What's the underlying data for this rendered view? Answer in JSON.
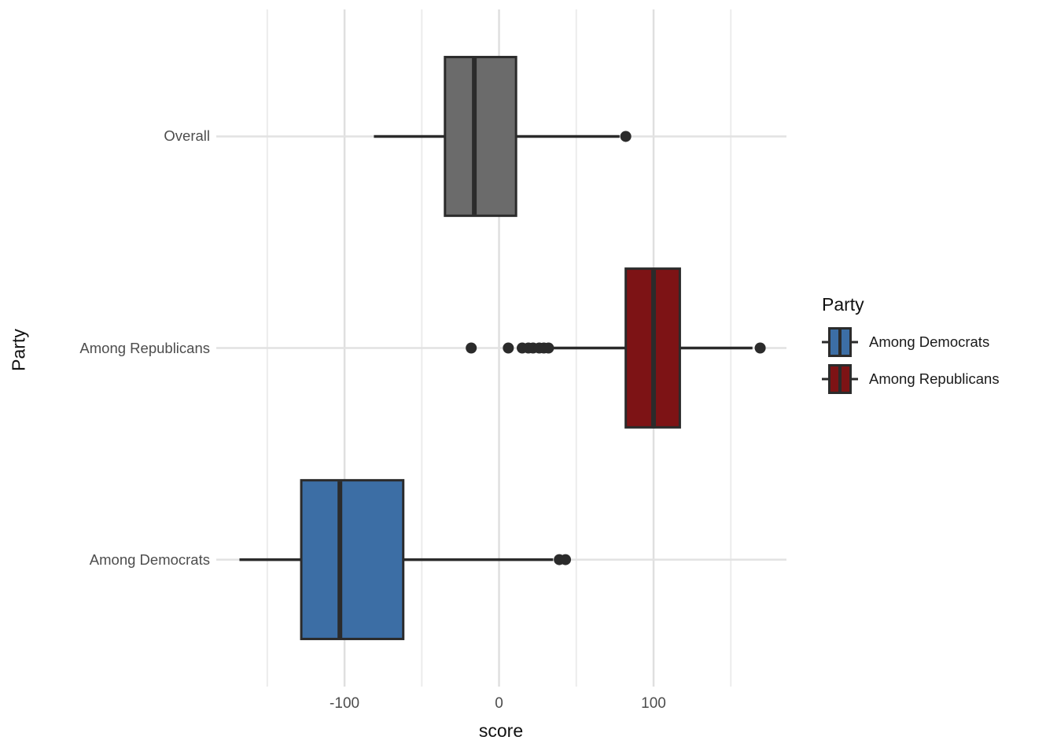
{
  "chart_data": {
    "type": "boxplot",
    "orientation": "horizontal",
    "title": "",
    "xlabel": "score",
    "ylabel": "Party",
    "xlim": [
      -183,
      186
    ],
    "x_major_ticks": [
      -100,
      0,
      100
    ],
    "x_tick_labels": [
      "-100",
      "0",
      "100"
    ],
    "x_minor_gridlines": [
      -150,
      -50,
      50,
      150
    ],
    "categories_top_to_bottom": [
      "Overall",
      "Among Republicans",
      "Among Democrats"
    ],
    "boxes": [
      {
        "category": "Overall",
        "fill": "#6B6B6B",
        "whisker_low": -81,
        "q1": -35,
        "median": -16,
        "q3": 11,
        "whisker_high": 78,
        "outliers": [
          82
        ]
      },
      {
        "category": "Among Republicans",
        "fill": "#7D1315",
        "whisker_low": 35,
        "q1": 82,
        "median": 100,
        "q3": 117,
        "whisker_high": 164,
        "outliers": [
          -18,
          6,
          15,
          19,
          22,
          26,
          29,
          32,
          169
        ]
      },
      {
        "category": "Among Democrats",
        "fill": "#3C6EA5",
        "whisker_low": -168,
        "q1": -128,
        "median": -103,
        "q3": -62,
        "whisker_high": 35,
        "outliers": [
          39,
          43
        ]
      }
    ],
    "legend": {
      "title": "Party",
      "entries": [
        {
          "label": "Among Democrats",
          "fill": "#3C6EA5"
        },
        {
          "label": "Among Republicans",
          "fill": "#7D1315"
        }
      ]
    },
    "colors": {
      "stroke": "#2B2B2B",
      "grid_major": "#DFDFDF",
      "grid_minor": "#ECECEC",
      "grid_row": "#E2E2E2",
      "tick_label": "#4D4D4D",
      "axis_title": "#111111",
      "background": "#FFFFFF"
    }
  }
}
